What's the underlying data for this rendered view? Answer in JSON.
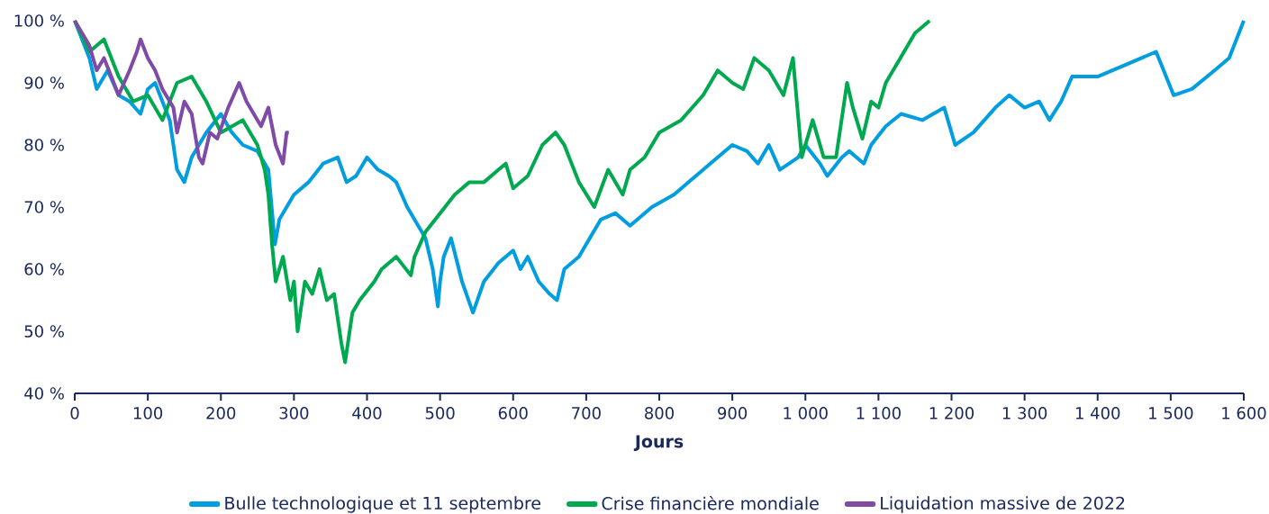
{
  "chart_data": {
    "type": "line",
    "xlabel": "Jours",
    "xlim": [
      0,
      1600
    ],
    "ylim": [
      40,
      100
    ],
    "xticks": [
      0,
      100,
      200,
      300,
      400,
      500,
      600,
      700,
      800,
      900,
      {
        "value": 1000,
        "label": "1 000"
      },
      {
        "value": 1100,
        "label": "1 100"
      },
      {
        "value": 1200,
        "label": "1 200"
      },
      {
        "value": 1300,
        "label": "1 300"
      },
      {
        "value": 1400,
        "label": "1 400"
      },
      {
        "value": 1500,
        "label": "1 500"
      },
      {
        "value": 1600,
        "label": "1 600"
      }
    ],
    "yticks": [
      {
        "value": 40,
        "label": "40 %"
      },
      {
        "value": 50,
        "label": "50 %"
      },
      {
        "value": 60,
        "label": "60 %"
      },
      {
        "value": 70,
        "label": "70 %"
      },
      {
        "value": 80,
        "label": "80 %"
      },
      {
        "value": 90,
        "label": "90 %"
      },
      {
        "value": 100,
        "label": "100 %"
      }
    ],
    "legend": "bottom",
    "series": [
      {
        "name": "Bulle technologique et 11 septembre",
        "color": "#009ee0",
        "x": [
          0,
          10,
          20,
          30,
          45,
          60,
          75,
          90,
          100,
          110,
          120,
          130,
          140,
          150,
          160,
          170,
          180,
          200,
          215,
          230,
          250,
          265,
          274,
          280,
          290,
          300,
          320,
          340,
          360,
          372,
          385,
          400,
          415,
          430,
          440,
          455,
          470,
          480,
          490,
          497,
          500,
          505,
          515,
          530,
          545,
          560,
          580,
          600,
          610,
          620,
          635,
          650,
          660,
          670,
          690,
          710,
          720,
          740,
          760,
          790,
          820,
          850,
          880,
          900,
          920,
          935,
          950,
          965,
          990,
          1000,
          1020,
          1030,
          1050,
          1060,
          1080,
          1090,
          1110,
          1131,
          1160,
          1190,
          1205,
          1230,
          1260,
          1279,
          1300,
          1320,
          1334,
          1350,
          1365,
          1400,
          1440,
          1480,
          1504,
          1529,
          1560,
          1580,
          1600
        ],
        "values": [
          100,
          97,
          94,
          89,
          92,
          88,
          87,
          85,
          89,
          90,
          87,
          84,
          76,
          74,
          78,
          80,
          82,
          85,
          82,
          80,
          79,
          76,
          64,
          68,
          70,
          72,
          74,
          77,
          78,
          74,
          75,
          78,
          76,
          75,
          74,
          70,
          67,
          65,
          60,
          54,
          58,
          62,
          65,
          58,
          53,
          58,
          61,
          63,
          60,
          62,
          58,
          56,
          55,
          60,
          62,
          66,
          68,
          69,
          67,
          70,
          72,
          75,
          78,
          80,
          79,
          77,
          80,
          76,
          78,
          80,
          77,
          75,
          78,
          79,
          77,
          80,
          83,
          85,
          84,
          86,
          80,
          82,
          86,
          88,
          86,
          87,
          84,
          87,
          91,
          91,
          93,
          95,
          88,
          89,
          92,
          94,
          100
        ]
      },
      {
        "name": "Crise financière mondiale",
        "color": "#00a94f",
        "x": [
          0,
          20,
          40,
          60,
          80,
          100,
          120,
          140,
          160,
          180,
          200,
          230,
          250,
          260,
          265,
          270,
          275,
          285,
          295,
          300,
          305,
          315,
          325,
          335,
          345,
          355,
          360,
          365,
          370,
          380,
          390,
          410,
          420,
          440,
          460,
          465,
          480,
          500,
          520,
          540,
          560,
          580,
          590,
          600,
          620,
          640,
          658,
          670,
          690,
          711,
          730,
          750,
          760,
          780,
          800,
          830,
          860,
          880,
          900,
          915,
          930,
          950,
          970,
          983,
          995,
          1010,
          1025,
          1042,
          1057,
          1065,
          1078,
          1090,
          1100,
          1110,
          1130,
          1150,
          1170
        ],
        "values": [
          100,
          95,
          97,
          91,
          87,
          88,
          84,
          90,
          91,
          87,
          82,
          84,
          80,
          76,
          72,
          64,
          58,
          62,
          55,
          58,
          50,
          58,
          56,
          60,
          55,
          56,
          52,
          48,
          45,
          53,
          55,
          58,
          60,
          62,
          59,
          62,
          66,
          69,
          72,
          74,
          74,
          76,
          77,
          73,
          75,
          80,
          82,
          80,
          74,
          70,
          76,
          72,
          76,
          78,
          82,
          84,
          88,
          92,
          90,
          89,
          94,
          92,
          88,
          94,
          78,
          84,
          78,
          78,
          90,
          86,
          81,
          87,
          86,
          90,
          94,
          98,
          100
        ]
      },
      {
        "name": "Liquidation massive de 2022",
        "color": "#7f4ba6",
        "x": [
          0,
          10,
          20,
          30,
          40,
          50,
          60,
          75,
          85,
          90,
          100,
          110,
          120,
          135,
          140,
          150,
          160,
          170,
          175,
          185,
          195,
          210,
          225,
          235,
          245,
          255,
          265,
          275,
          285,
          290,
          293
        ],
        "values": [
          100,
          98,
          96,
          92,
          94,
          91,
          88,
          92,
          95,
          97,
          94,
          92,
          89,
          86,
          82,
          87,
          85,
          78,
          77,
          82,
          81,
          86,
          90,
          87,
          85,
          83,
          86,
          80,
          77,
          82,
          82
        ]
      }
    ]
  }
}
